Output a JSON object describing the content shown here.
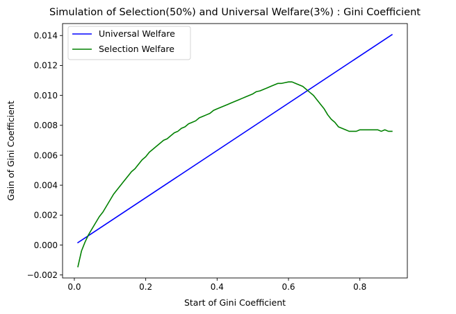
{
  "chart_data": {
    "type": "line",
    "title": "Simulation of Selection(50%) and Universal Welfare(3%) : Gini Coefficient",
    "xlabel": "Start of Gini Coefficient",
    "ylabel": "Gain of Gini Coefficient",
    "xlim": [
      -0.033,
      0.933
    ],
    "ylim": [
      -0.0022,
      0.0148
    ],
    "xticks": [
      0.0,
      0.2,
      0.4,
      0.6,
      0.8
    ],
    "xtick_labels": [
      "0.0",
      "0.2",
      "0.4",
      "0.6",
      "0.8"
    ],
    "yticks": [
      -0.002,
      0.0,
      0.002,
      0.004,
      0.006,
      0.008,
      0.01,
      0.012,
      0.014
    ],
    "ytick_labels": [
      "−0.002",
      "0.000",
      "0.002",
      "0.004",
      "0.006",
      "0.008",
      "0.010",
      "0.012",
      "0.014"
    ],
    "grid": false,
    "legend_position": "upper-left",
    "series": [
      {
        "name": "Universal Welfare",
        "color": "#0000ff",
        "x": [
          0.01,
          0.89
        ],
        "y": [
          0.00016,
          0.01406
        ]
      },
      {
        "name": "Selection Welfare",
        "color": "#008000",
        "x": [
          0.01,
          0.02,
          0.03,
          0.04,
          0.05,
          0.06,
          0.07,
          0.08,
          0.09,
          0.1,
          0.11,
          0.12,
          0.13,
          0.14,
          0.15,
          0.16,
          0.17,
          0.18,
          0.19,
          0.2,
          0.21,
          0.22,
          0.23,
          0.24,
          0.25,
          0.26,
          0.27,
          0.28,
          0.29,
          0.3,
          0.31,
          0.32,
          0.33,
          0.34,
          0.35,
          0.36,
          0.37,
          0.38,
          0.39,
          0.4,
          0.41,
          0.42,
          0.43,
          0.44,
          0.45,
          0.46,
          0.47,
          0.48,
          0.49,
          0.5,
          0.51,
          0.52,
          0.53,
          0.54,
          0.55,
          0.56,
          0.57,
          0.58,
          0.59,
          0.6,
          0.61,
          0.62,
          0.63,
          0.64,
          0.65,
          0.66,
          0.67,
          0.68,
          0.69,
          0.7,
          0.71,
          0.72,
          0.73,
          0.74,
          0.75,
          0.76,
          0.77,
          0.78,
          0.79,
          0.8,
          0.81,
          0.82,
          0.83,
          0.84,
          0.85,
          0.86,
          0.87,
          0.88,
          0.89
        ],
        "y": [
          -0.00145,
          -0.0004,
          0.0002,
          0.0007,
          0.0011,
          0.0015,
          0.0019,
          0.0022,
          0.0026,
          0.003,
          0.0034,
          0.0037,
          0.004,
          0.0043,
          0.0046,
          0.0049,
          0.0051,
          0.0054,
          0.0057,
          0.0059,
          0.0062,
          0.0064,
          0.0066,
          0.0068,
          0.007,
          0.0071,
          0.0073,
          0.0075,
          0.0076,
          0.0078,
          0.0079,
          0.0081,
          0.0082,
          0.0083,
          0.0085,
          0.0086,
          0.0087,
          0.0088,
          0.009,
          0.0091,
          0.0092,
          0.0093,
          0.0094,
          0.0095,
          0.0096,
          0.0097,
          0.0098,
          0.0099,
          0.01,
          0.0101,
          0.01025,
          0.0103,
          0.0104,
          0.0105,
          0.0106,
          0.0107,
          0.0108,
          0.0108,
          0.01085,
          0.0109,
          0.0109,
          0.0108,
          0.0107,
          0.0106,
          0.0104,
          0.0102,
          0.01,
          0.0097,
          0.0094,
          0.0091,
          0.0087,
          0.0084,
          0.0082,
          0.0079,
          0.0078,
          0.0077,
          0.0076,
          0.0076,
          0.0076,
          0.0077,
          0.0077,
          0.0077,
          0.0077,
          0.0077,
          0.0077,
          0.0076,
          0.0077,
          0.0076,
          0.0076
        ]
      }
    ]
  }
}
